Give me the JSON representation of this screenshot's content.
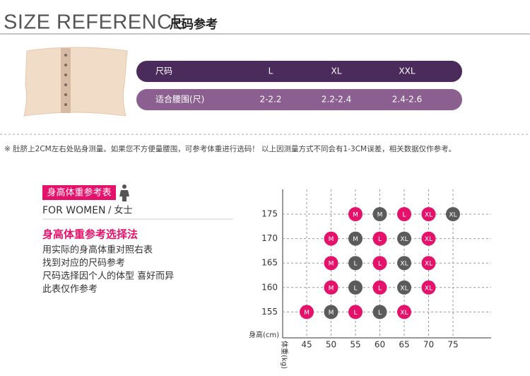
{
  "header": {
    "title": "SIZE REFERENCE",
    "subtitle": "尺码参考"
  },
  "size_table": {
    "rows": [
      [
        "尺码",
        "L",
        "XL",
        "XXL"
      ],
      [
        "适合腰围(尺)",
        "2-2.2",
        "2.2-2.4",
        "2.4-2.6"
      ]
    ],
    "row_colors": [
      "#4b2b5c",
      "#8b5f8f"
    ]
  },
  "note": "※ 肚脐上2CM左右处贴身测量。如果您不方便量腰围，可参考体重进行选码！ 以上因测量方式不同会有1-3CM误差，相关数据仅作参考。",
  "guide": {
    "badge": "身高体重参考表",
    "for_women": "FOR WOMEN",
    "women_cn": "/ 女士",
    "heading": "身高体重参考选择法",
    "lines": [
      "用实际的身高体重对照右表",
      "找到对应的尺码参考",
      "尺码选择因个人的体型 喜好而异",
      "此表仅作参考"
    ]
  },
  "size_grid": {
    "y_label": "身高(cm)",
    "x_label": "体重(kg)",
    "weights": [
      45,
      50,
      55,
      60,
      65,
      70,
      75
    ],
    "rows": [
      {
        "height": 175,
        "cells": [
          null,
          null,
          {
            "size": "M",
            "color": "#e4126b"
          },
          {
            "size": "M",
            "color": "#5b5b5b"
          },
          {
            "size": "L",
            "color": "#e4126b"
          },
          {
            "size": "XL",
            "color": "#e4126b"
          },
          {
            "size": "XL",
            "color": "#5b5b5b"
          }
        ]
      },
      {
        "height": 170,
        "cells": [
          null,
          {
            "size": "M",
            "color": "#e4126b"
          },
          {
            "size": "M",
            "color": "#5b5b5b"
          },
          {
            "size": "L",
            "color": "#e4126b"
          },
          {
            "size": "XL",
            "color": "#5b5b5b"
          },
          {
            "size": "XL",
            "color": "#e4126b"
          },
          null
        ]
      },
      {
        "height": 165,
        "cells": [
          null,
          {
            "size": "M",
            "color": "#e4126b"
          },
          {
            "size": "L",
            "color": "#5b5b5b"
          },
          {
            "size": "L",
            "color": "#e4126b"
          },
          {
            "size": "XL",
            "color": "#5b5b5b"
          },
          {
            "size": "XL",
            "color": "#e4126b"
          },
          null
        ]
      },
      {
        "height": 160,
        "cells": [
          null,
          {
            "size": "M",
            "color": "#e4126b"
          },
          {
            "size": "L",
            "color": "#5b5b5b"
          },
          {
            "size": "L",
            "color": "#e4126b"
          },
          {
            "size": "XL",
            "color": "#5b5b5b"
          },
          {
            "size": "XL",
            "color": "#e4126b"
          },
          null
        ]
      },
      {
        "height": 155,
        "cells": [
          {
            "size": "M",
            "color": "#e4126b"
          },
          {
            "size": "M",
            "color": "#5b5b5b"
          },
          {
            "size": "L",
            "color": "#e4126b"
          },
          {
            "size": "L",
            "color": "#5b5b5b"
          },
          {
            "size": "XL",
            "color": "#e4126b"
          },
          null,
          null
        ]
      }
    ]
  }
}
